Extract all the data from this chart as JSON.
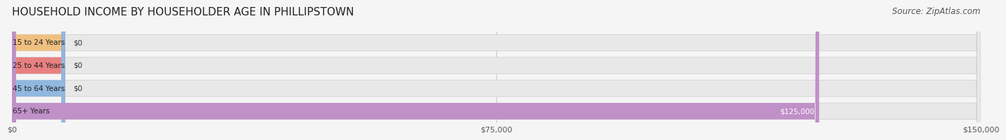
{
  "title": "HOUSEHOLD INCOME BY HOUSEHOLDER AGE IN PHILLIPSTOWN",
  "source": "Source: ZipAtlas.com",
  "categories": [
    "15 to 24 Years",
    "25 to 44 Years",
    "45 to 64 Years",
    "65+ Years"
  ],
  "values": [
    0,
    0,
    0,
    125000
  ],
  "bar_colors": [
    "#f0c080",
    "#e88080",
    "#90b8e0",
    "#c090c8"
  ],
  "bar_label_colors": [
    "#333333",
    "#333333",
    "#333333",
    "#ffffff"
  ],
  "value_labels": [
    "$0",
    "$0",
    "$0",
    "$125,000"
  ],
  "xlim": [
    0,
    150000
  ],
  "xticks": [
    0,
    75000,
    150000
  ],
  "xtick_labels": [
    "$0",
    "$75,000",
    "$150,000"
  ],
  "background_color": "#f5f5f5",
  "bar_bg_color": "#e8e8e8",
  "title_fontsize": 11,
  "source_fontsize": 8.5
}
